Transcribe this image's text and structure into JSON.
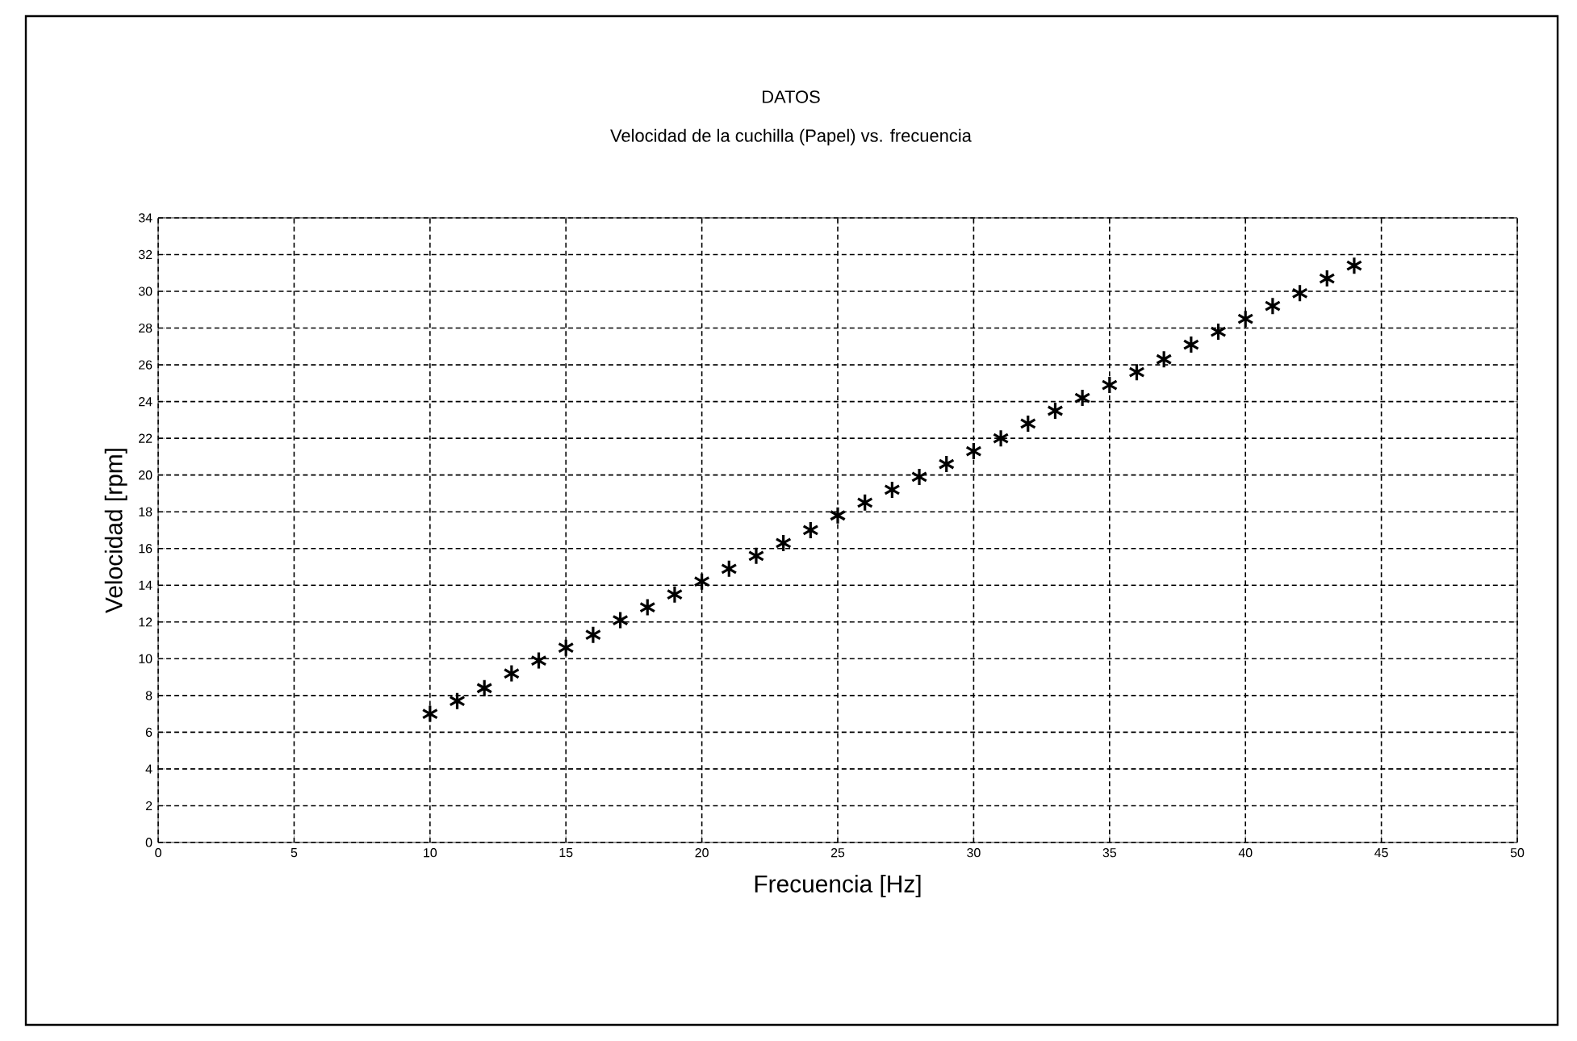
{
  "chart_data": {
    "type": "scatter",
    "title": "DATOS",
    "subtitle": "Velocidad de la cuchilla (Papel) vs. frecuencia",
    "xlabel": "Frecuencia [Hz]",
    "ylabel": "Velocidad [rpm]",
    "x": [
      10,
      11,
      12,
      13,
      14,
      15,
      16,
      17,
      18,
      19,
      20,
      21,
      22,
      23,
      24,
      25,
      26,
      27,
      28,
      29,
      30,
      31,
      32,
      33,
      34,
      35,
      36,
      37,
      38,
      39,
      40,
      41,
      42,
      43,
      44
    ],
    "values": [
      7.0,
      7.7,
      8.4,
      9.2,
      9.9,
      10.6,
      11.3,
      12.1,
      12.8,
      13.5,
      14.2,
      14.9,
      15.6,
      16.3,
      17.0,
      17.8,
      18.5,
      19.2,
      19.9,
      20.6,
      21.3,
      22.0,
      22.8,
      23.5,
      24.2,
      24.9,
      25.6,
      26.3,
      27.1,
      27.8,
      28.5,
      29.2,
      29.9,
      30.7,
      31.4
    ],
    "color": "#000000",
    "marker": "cross",
    "xlim": [
      0,
      50
    ],
    "xticks": [
      0,
      5,
      10,
      15,
      20,
      25,
      30,
      35,
      40,
      45,
      50
    ],
    "ylim": [
      0,
      34
    ],
    "yticks": [
      0,
      2,
      4,
      6,
      8,
      10,
      12,
      14,
      16,
      18,
      20,
      22,
      24,
      26,
      28,
      30,
      32,
      34
    ],
    "grid": true
  }
}
